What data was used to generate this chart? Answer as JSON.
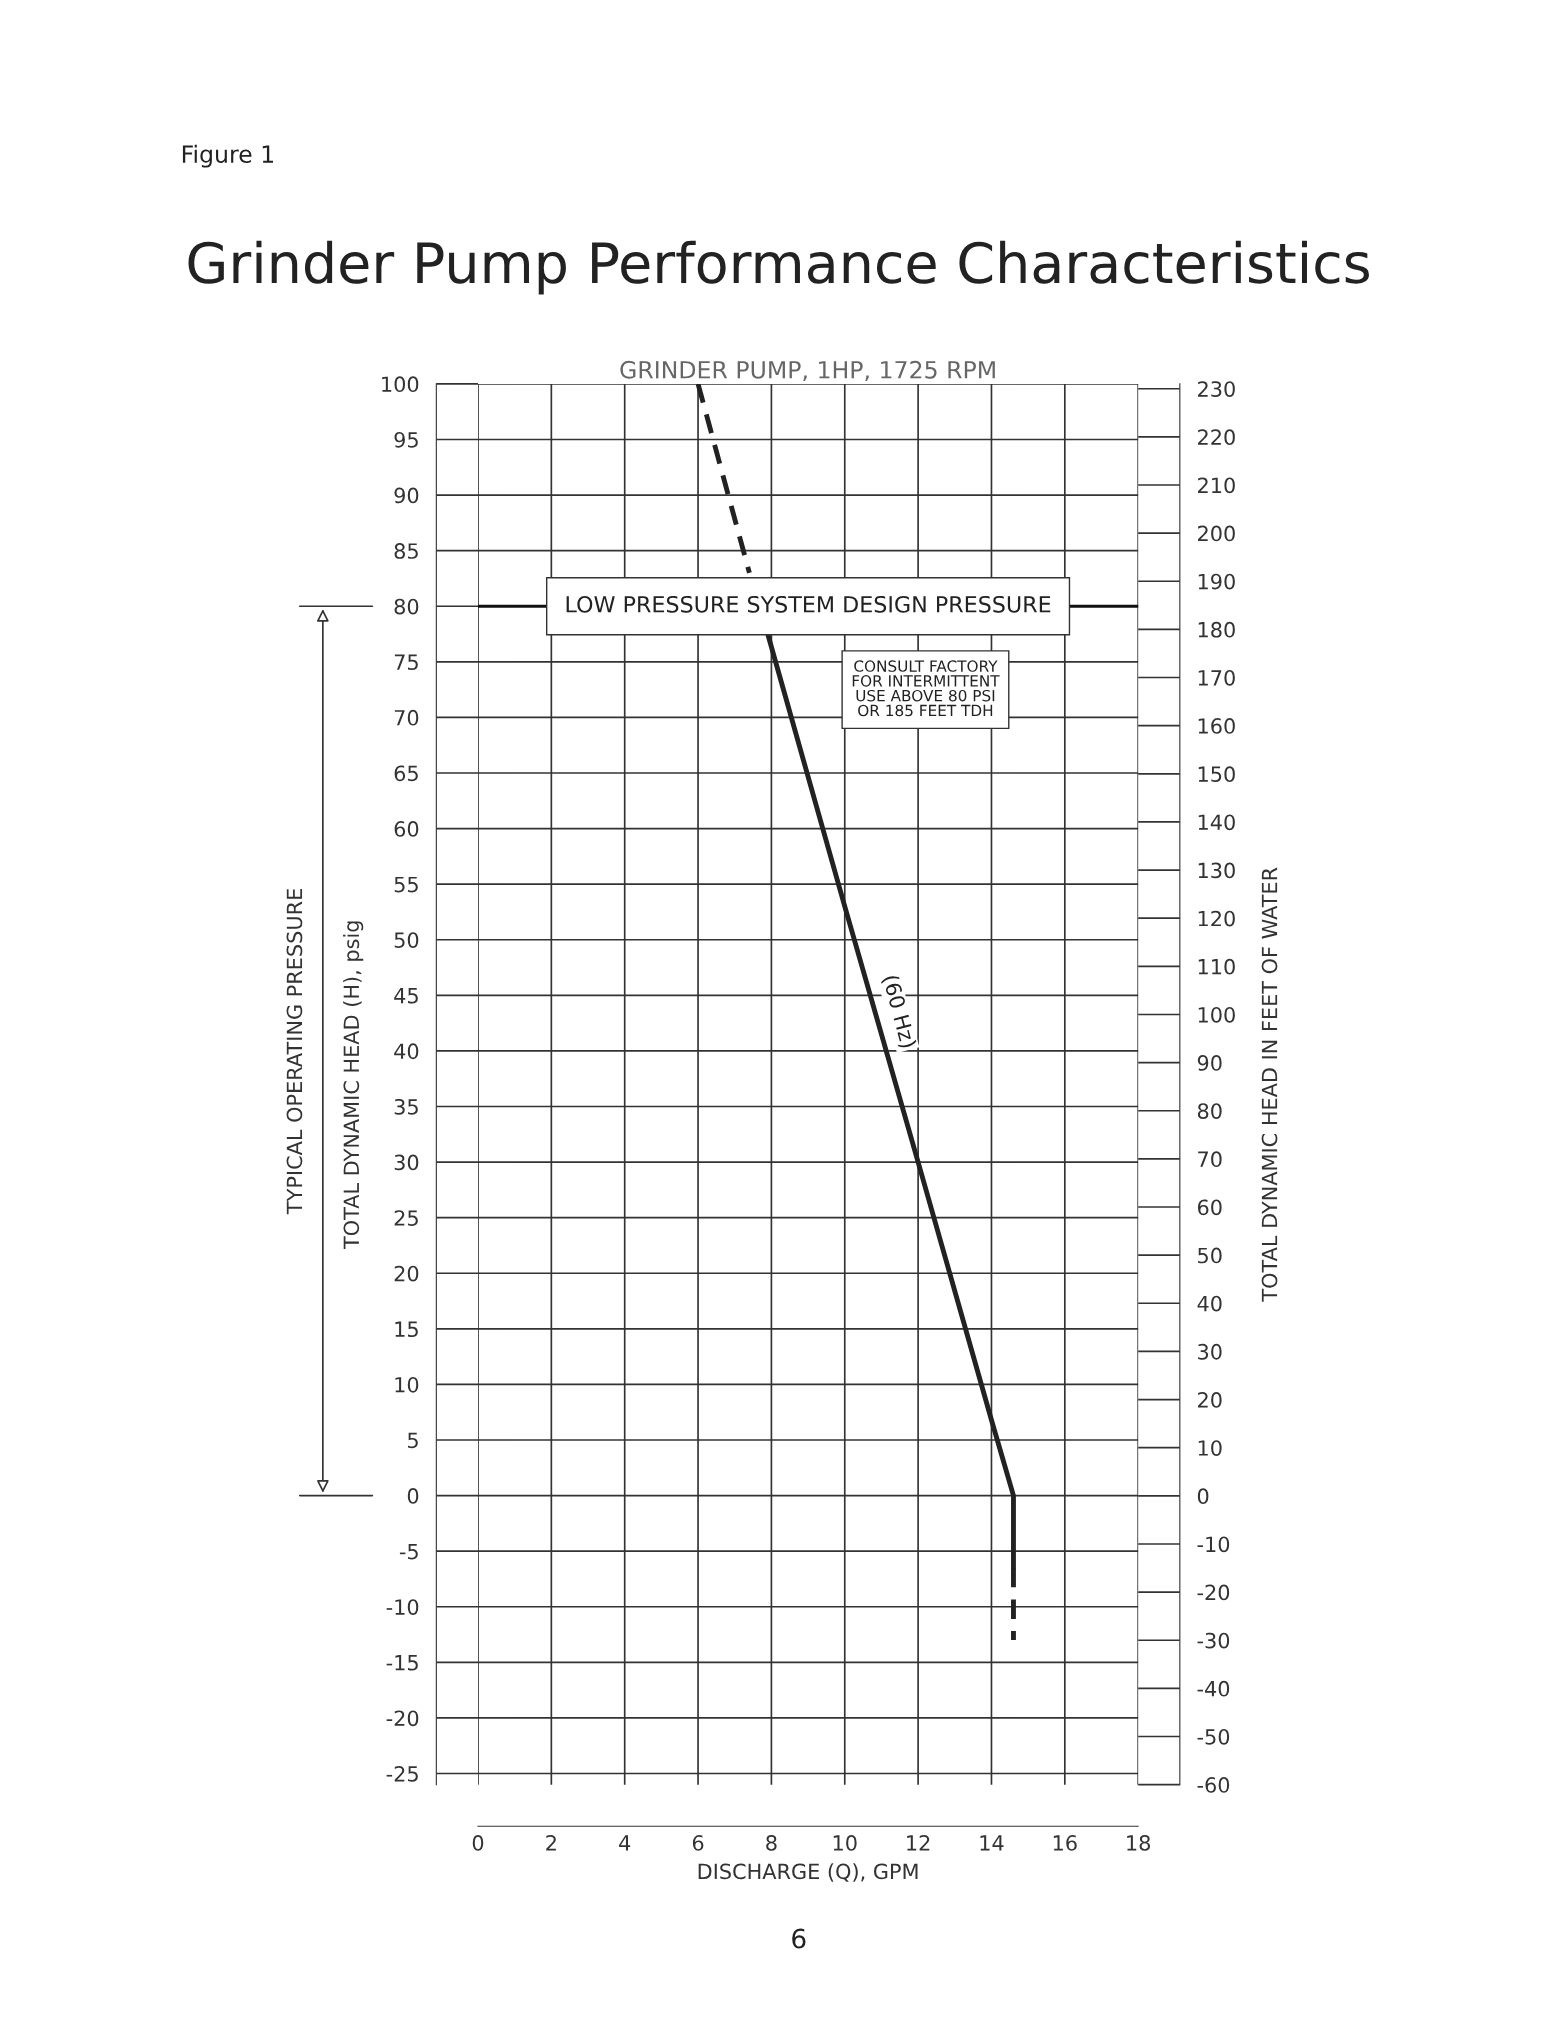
{
  "chart_data": {
    "type": "line",
    "title": "Grinder Pump Performance Characteristics",
    "subtitle": "GRINDER PUMP, 1HP, 1725 RPM",
    "xlabel": "DISCHARGE (Q), GPM",
    "ylabel": "TOTAL DYNAMIC HEAD (H), psig",
    "y2label": "TOTAL DYNAMIC HEAD IN FEET OF WATER",
    "xlim": [
      0,
      18
    ],
    "xticks": [
      0,
      2,
      4,
      6,
      8,
      10,
      12,
      14,
      16,
      18
    ],
    "ylim": [
      -26,
      100
    ],
    "yticks": [
      -25,
      -20,
      -15,
      -10,
      -5,
      0,
      5,
      10,
      15,
      20,
      25,
      30,
      35,
      40,
      45,
      50,
      55,
      60,
      65,
      70,
      75,
      80,
      85,
      90,
      95,
      100
    ],
    "y2lim": [
      -60,
      231
    ],
    "y2ticks": [
      -60,
      -50,
      -40,
      -30,
      -20,
      -10,
      0,
      10,
      20,
      30,
      40,
      50,
      60,
      70,
      80,
      90,
      100,
      110,
      120,
      130,
      140,
      150,
      160,
      170,
      180,
      190,
      200,
      210,
      220,
      230
    ],
    "grid": true,
    "series": [
      {
        "color": "#222222",
        "line_style": "dashed",
        "x": [
          6,
          7.4
        ],
        "values": [
          100,
          83
        ]
      },
      {
        "name": "(60 Hz)",
        "color": "#222222",
        "line_style": "solid",
        "x": [
          7.9,
          10,
          12,
          14,
          14.6,
          14.6
        ],
        "values": [
          77.5,
          53,
          30,
          6.8,
          0,
          -6.5
        ]
      },
      {
        "color": "#222222",
        "line_style": "dashed",
        "x": [
          14.6,
          14.6
        ],
        "values": [
          -6.5,
          -13
        ]
      }
    ],
    "ref_lines": [
      {
        "axis": "y",
        "value": 80,
        "label": "LOW PRESSURE SYSTEM DESIGN PRESSURE"
      }
    ],
    "annotations": [
      "TYPICAL OPERATING PRESSURE",
      "Figure 1",
      "CONSULT FACTORY\nFOR INTERMITTENT\nUSE ABOVE 80 PSI\nOR 185 FEET TDH",
      "6"
    ]
  }
}
